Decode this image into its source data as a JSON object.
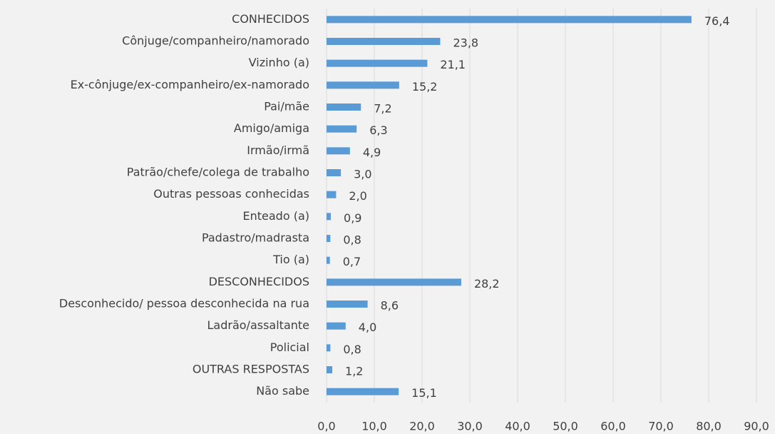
{
  "chart_data": {
    "type": "barh",
    "categories": [
      "CONHECIDOS",
      "Cônjuge/companheiro/namorado",
      "Vizinho (a)",
      "Ex-cônjuge/ex-companheiro/ex-namorado",
      "Pai/mãe",
      "Amigo/amiga",
      "Irmão/irmã",
      "Patrão/chefe/colega de trabalho",
      "Outras pessoas conhecidas",
      "Enteado (a)",
      "Padastro/madrasta",
      "Tio (a)",
      "DESCONHECIDOS",
      "Desconhecido/ pessoa desconhecida na rua",
      "Ladrão/assaltante",
      "Policial",
      "OUTRAS RESPOSTAS",
      "Não sabe"
    ],
    "values": [
      76.4,
      23.8,
      21.1,
      15.2,
      7.2,
      6.3,
      4.9,
      3.0,
      2.0,
      0.9,
      0.8,
      0.7,
      28.2,
      8.6,
      4.0,
      0.8,
      1.2,
      15.1
    ],
    "value_labels": [
      "76,4",
      "23,8",
      "21,1",
      "15,2",
      "7,2",
      "6,3",
      "4,9",
      "3,0",
      "2,0",
      "0,9",
      "0,8",
      "0,7",
      "28,2",
      "8,6",
      "4,0",
      "0,8",
      "1,2",
      "15,1"
    ],
    "color": "#5b9bd5",
    "xlim": [
      0,
      90
    ],
    "xticks": [
      {
        "value": 0,
        "label": "0,0"
      },
      {
        "value": 10,
        "label": "10,0"
      },
      {
        "value": 20,
        "label": "20,0"
      },
      {
        "value": 30,
        "label": "30,0"
      },
      {
        "value": 40,
        "label": "40,0"
      },
      {
        "value": 50,
        "label": "50,0"
      },
      {
        "value": 60,
        "label": "60,0"
      },
      {
        "value": 70,
        "label": "70,0"
      },
      {
        "value": 80,
        "label": "80,0"
      },
      {
        "value": 90,
        "label": "90,0"
      }
    ],
    "grid": true
  }
}
